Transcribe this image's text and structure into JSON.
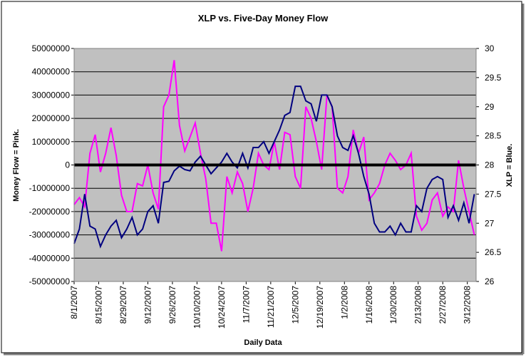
{
  "chart_data": {
    "type": "line",
    "title": "XLP vs. Five-Day Money Flow",
    "x_label": "Daily Data",
    "y_label": "Money Flow = Pink.",
    "y2_label": "XLP = Blue.",
    "x": [
      "8/1/2007",
      "8/4/2007",
      "8/7/2007",
      "8/10/2007",
      "8/13/2007",
      "8/16/2007",
      "8/19/2007",
      "8/22/2007",
      "8/25/2007",
      "8/28/2007",
      "8/31/2007",
      "9/3/2007",
      "9/6/2007",
      "9/9/2007",
      "9/12/2007",
      "9/15/2007",
      "9/18/2007",
      "9/21/2007",
      "9/24/2007",
      "9/27/2007",
      "9/30/2007",
      "10/3/2007",
      "10/6/2007",
      "10/9/2007",
      "10/12/2007",
      "10/15/2007",
      "10/18/2007",
      "10/21/2007",
      "10/24/2007",
      "10/27/2007",
      "10/30/2007",
      "11/2/2007",
      "11/5/2007",
      "11/8/2007",
      "11/11/2007",
      "11/14/2007",
      "11/17/2007",
      "11/20/2007",
      "11/23/2007",
      "11/26/2007",
      "11/29/2007",
      "12/2/2007",
      "12/5/2007",
      "12/8/2007",
      "12/11/2007",
      "12/14/2007",
      "12/17/2007",
      "12/20/2007",
      "12/23/2007",
      "12/26/2007",
      "12/29/2007",
      "1/1/2008",
      "1/4/2008",
      "1/7/2008",
      "1/10/2008",
      "1/13/2008",
      "1/16/2008",
      "1/19/2008",
      "1/22/2008",
      "1/25/2008",
      "1/28/2008",
      "1/31/2008",
      "2/3/2008",
      "2/6/2008",
      "2/9/2008",
      "2/12/2008",
      "2/15/2008",
      "2/18/2008",
      "2/21/2008",
      "2/24/2008",
      "2/27/2008",
      "3/1/2008",
      "3/4/2008",
      "3/7/2008",
      "3/10/2008",
      "3/13/2008",
      "3/16/2008"
    ],
    "series": [
      {
        "name": "Money Flow",
        "color": "#ff00ff",
        "axis": "y",
        "values": [
          -17000000,
          -14000000,
          -18000000,
          5000000,
          13000000,
          -3000000,
          5000000,
          16000000,
          4000000,
          -13000000,
          -20000000,
          -20000000,
          -8000000,
          -9000000,
          0,
          -12000000,
          -19000000,
          25000000,
          30000000,
          45000000,
          17000000,
          6000000,
          12000000,
          18000000,
          5000000,
          -6000000,
          -25000000,
          -25000000,
          -37000000,
          -5000000,
          -12000000,
          -3000000,
          -8000000,
          -20000000,
          -10000000,
          5000000,
          0,
          -2000000,
          10000000,
          -2000000,
          14000000,
          13000000,
          -5000000,
          -10000000,
          25000000,
          20000000,
          10000000,
          -2000000,
          30000000,
          25000000,
          -10000000,
          -12000000,
          -5000000,
          15000000,
          5000000,
          12000000,
          -15000000,
          -12000000,
          -8000000,
          0,
          5000000,
          2000000,
          -2000000,
          0,
          5000000,
          -22000000,
          -28000000,
          -25000000,
          -15000000,
          -12000000,
          -22000000,
          -18000000,
          -20000000,
          2000000,
          -10000000,
          -20000000,
          -30000000
        ]
      },
      {
        "name": "XLP",
        "color": "#000080",
        "axis": "y2",
        "values": [
          26.65,
          26.9,
          27.5,
          26.95,
          26.9,
          26.6,
          26.8,
          26.95,
          27.05,
          26.75,
          26.9,
          27.1,
          26.8,
          26.9,
          27.2,
          27.3,
          27.0,
          27.7,
          27.72,
          27.9,
          27.98,
          27.92,
          27.9,
          28.05,
          28.15,
          28.0,
          27.85,
          27.95,
          28.05,
          28.2,
          28.05,
          27.95,
          28.2,
          27.95,
          28.3,
          28.3,
          28.4,
          28.2,
          28.4,
          28.6,
          28.85,
          28.9,
          29.35,
          29.35,
          29.1,
          29.05,
          28.75,
          29.2,
          29.2,
          29.0,
          28.5,
          28.3,
          28.25,
          28.5,
          28.2,
          27.8,
          27.5,
          27.0,
          26.85,
          26.85,
          26.95,
          26.8,
          27.0,
          26.85,
          26.85,
          27.3,
          27.2,
          27.6,
          27.75,
          27.8,
          27.75,
          27.1,
          27.3,
          27.05,
          27.35,
          27.0,
          27.5
        ]
      }
    ],
    "xlim": [
      "8/1/2007",
      "3/17/2008"
    ],
    "xticks": [
      "8/1/2007",
      "8/15/2007",
      "8/29/2007",
      "9/12/2007",
      "9/26/2007",
      "10/10/2007",
      "10/24/2007",
      "11/7/2007",
      "11/21/2007",
      "12/5/2007",
      "12/19/2007",
      "1/2/2008",
      "1/16/2008",
      "1/30/2008",
      "2/13/2008",
      "2/27/2008",
      "3/12/2008"
    ],
    "ylim": [
      -50000000,
      50000000
    ],
    "yticks": [
      -50000000,
      -40000000,
      -30000000,
      -20000000,
      -10000000,
      0,
      10000000,
      20000000,
      30000000,
      40000000,
      50000000
    ],
    "y2lim": [
      26,
      30
    ],
    "y2ticks": [
      26,
      26.5,
      27,
      27.5,
      28,
      28.5,
      29,
      29.5,
      30
    ],
    "grid": true,
    "zero_line": true,
    "plot_background": "#c0c0c0"
  }
}
